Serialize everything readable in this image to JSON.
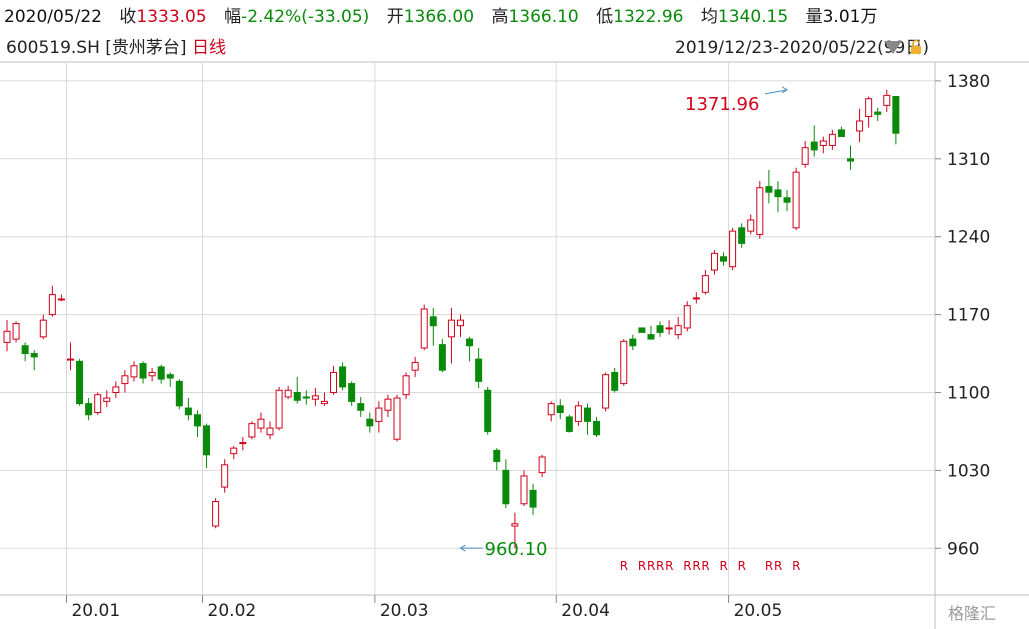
{
  "quote_bar": {
    "date": "2020/05/22",
    "close_label": "收",
    "close_value": "1333.05",
    "change_label": "幅",
    "change_value": "-2.42%(-33.05)",
    "open_label": "开",
    "open_value": "1366.00",
    "high_label": "高",
    "high_value": "1366.10",
    "low_label": "低",
    "low_value": "1322.96",
    "avg_label": "均",
    "avg_value": "1340.15",
    "volume_label": "量",
    "volume_value": "3.01万"
  },
  "stock": {
    "code": "600519.SH",
    "name": "[贵州茅台]",
    "period": "日线",
    "range": "2019/12/23-2020/05/22(99日)"
  },
  "colors": {
    "up": "#d0021b",
    "down": "#0a8a0a",
    "grid": "#d9d9d9"
  },
  "watermark": "格隆汇",
  "chart_data": {
    "type": "candlestick",
    "y_axis": {
      "ticks": [
        960,
        1030,
        1100,
        1170,
        1240,
        1310,
        1380
      ],
      "range": [
        918,
        1397
      ]
    },
    "x_axis": {
      "tick_labels": [
        "20.01",
        "20.02",
        "20.03",
        "20.04",
        "20.05"
      ],
      "tick_index": [
        7,
        22,
        41,
        61,
        80
      ]
    },
    "annotations": [
      {
        "text": "1371.96",
        "index": 86,
        "value": 1371.96,
        "kind": "high"
      },
      {
        "text": "960.10",
        "index": 50,
        "value": 960.1,
        "kind": "low"
      }
    ],
    "r_markers": {
      "text": "R",
      "indices": [
        68,
        70,
        71,
        72,
        73,
        75,
        76,
        77,
        79,
        81,
        84,
        85,
        87
      ]
    },
    "candles": [
      [
        1145,
        1155,
        1137,
        1165
      ],
      [
        1148,
        1162,
        1145,
        1164
      ],
      [
        1142,
        1135,
        1128,
        1145
      ],
      [
        1135,
        1132,
        1120,
        1138
      ],
      [
        1150,
        1165,
        1148,
        1170
      ],
      [
        1170,
        1188,
        1168,
        1196
      ],
      [
        1184,
        1184,
        1182,
        1188
      ],
      [
        1130,
        1130,
        1120,
        1145
      ],
      [
        1128,
        1090,
        1088,
        1130
      ],
      [
        1090,
        1080,
        1075,
        1095
      ],
      [
        1082,
        1098,
        1080,
        1100
      ],
      [
        1092,
        1095,
        1087,
        1102
      ],
      [
        1100,
        1105,
        1095,
        1110
      ],
      [
        1108,
        1115,
        1100,
        1120
      ],
      [
        1114,
        1124,
        1110,
        1128
      ],
      [
        1126,
        1113,
        1108,
        1128
      ],
      [
        1115,
        1118,
        1110,
        1122
      ],
      [
        1123,
        1112,
        1108,
        1125
      ],
      [
        1116,
        1113,
        1105,
        1118
      ],
      [
        1110,
        1088,
        1085,
        1112
      ],
      [
        1086,
        1080,
        1075,
        1095
      ],
      [
        1080,
        1070,
        1060,
        1084
      ],
      [
        1070,
        1044,
        1032,
        1072
      ],
      [
        980,
        1002,
        978,
        1005
      ],
      [
        1015,
        1035,
        1010,
        1040
      ],
      [
        1045,
        1050,
        1040,
        1052
      ],
      [
        1055,
        1055,
        1048,
        1060
      ],
      [
        1060,
        1072,
        1058,
        1074
      ],
      [
        1068,
        1076,
        1064,
        1082
      ],
      [
        1062,
        1068,
        1058,
        1074
      ],
      [
        1068,
        1102,
        1066,
        1105
      ],
      [
        1096,
        1102,
        1094,
        1106
      ],
      [
        1100,
        1093,
        1090,
        1114
      ],
      [
        1096,
        1095,
        1089,
        1102
      ],
      [
        1094,
        1097,
        1088,
        1104
      ],
      [
        1090,
        1092,
        1088,
        1100
      ],
      [
        1100,
        1118,
        1098,
        1124
      ],
      [
        1123,
        1105,
        1102,
        1127
      ],
      [
        1108,
        1092,
        1088,
        1110
      ],
      [
        1090,
        1084,
        1078,
        1096
      ],
      [
        1076,
        1070,
        1064,
        1082
      ],
      [
        1074,
        1086,
        1064,
        1092
      ],
      [
        1084,
        1094,
        1078,
        1098
      ],
      [
        1058,
        1095,
        1056,
        1098
      ],
      [
        1098,
        1115,
        1094,
        1118
      ],
      [
        1120,
        1127,
        1114,
        1132
      ],
      [
        1140,
        1175,
        1138,
        1179
      ],
      [
        1168,
        1160,
        1142,
        1176
      ],
      [
        1143,
        1120,
        1118,
        1148
      ],
      [
        1150,
        1165,
        1126,
        1176
      ],
      [
        1160,
        1165,
        1150,
        1170
      ],
      [
        1148,
        1142,
        1128,
        1150
      ],
      [
        1130,
        1110,
        1104,
        1140
      ],
      [
        1102,
        1065,
        1062,
        1105
      ],
      [
        1048,
        1038,
        1030,
        1050
      ],
      [
        1030,
        1000,
        996,
        1040
      ],
      [
        980,
        982,
        960,
        992
      ],
      [
        1000,
        1025,
        998,
        1030
      ],
      [
        1012,
        997,
        990,
        1018
      ],
      [
        1028,
        1042,
        1024,
        1044
      ],
      [
        1080,
        1090,
        1074,
        1092
      ],
      [
        1088,
        1082,
        1076,
        1094
      ],
      [
        1078,
        1065,
        1064,
        1080
      ],
      [
        1074,
        1088,
        1070,
        1092
      ],
      [
        1086,
        1074,
        1062,
        1090
      ],
      [
        1074,
        1062,
        1060,
        1078
      ],
      [
        1086,
        1116,
        1083,
        1118
      ],
      [
        1118,
        1102,
        1100,
        1122
      ],
      [
        1108,
        1146,
        1106,
        1148
      ],
      [
        1148,
        1142,
        1138,
        1152
      ],
      [
        1158,
        1154,
        1154,
        1158
      ],
      [
        1152,
        1148,
        1148,
        1160
      ],
      [
        1160,
        1154,
        1150,
        1164
      ],
      [
        1158,
        1158,
        1152,
        1165
      ],
      [
        1152,
        1160,
        1148,
        1168
      ],
      [
        1158,
        1178,
        1155,
        1182
      ],
      [
        1185,
        1185,
        1180,
        1190
      ],
      [
        1190,
        1205,
        1188,
        1210
      ],
      [
        1210,
        1225,
        1206,
        1228
      ],
      [
        1222,
        1218,
        1214,
        1226
      ],
      [
        1213,
        1245,
        1210,
        1248
      ],
      [
        1248,
        1234,
        1230,
        1252
      ],
      [
        1245,
        1255,
        1242,
        1260
      ],
      [
        1242,
        1284,
        1238,
        1290
      ],
      [
        1285,
        1280,
        1270,
        1300
      ],
      [
        1282,
        1276,
        1262,
        1290
      ],
      [
        1275,
        1271,
        1263,
        1282
      ],
      [
        1248,
        1298,
        1246,
        1302
      ],
      [
        1305,
        1320,
        1302,
        1326
      ],
      [
        1325,
        1318,
        1312,
        1340
      ],
      [
        1322,
        1326,
        1315,
        1330
      ],
      [
        1322,
        1332,
        1318,
        1336
      ],
      [
        1336,
        1330,
        1330,
        1339
      ],
      [
        1310,
        1308,
        1300,
        1322
      ],
      [
        1335,
        1344,
        1325,
        1355
      ],
      [
        1348,
        1364,
        1338,
        1366
      ],
      [
        1352,
        1350,
        1344,
        1356
      ],
      [
        1358,
        1367,
        1352,
        1372
      ],
      [
        1366,
        1333,
        1323,
        1366
      ]
    ]
  }
}
